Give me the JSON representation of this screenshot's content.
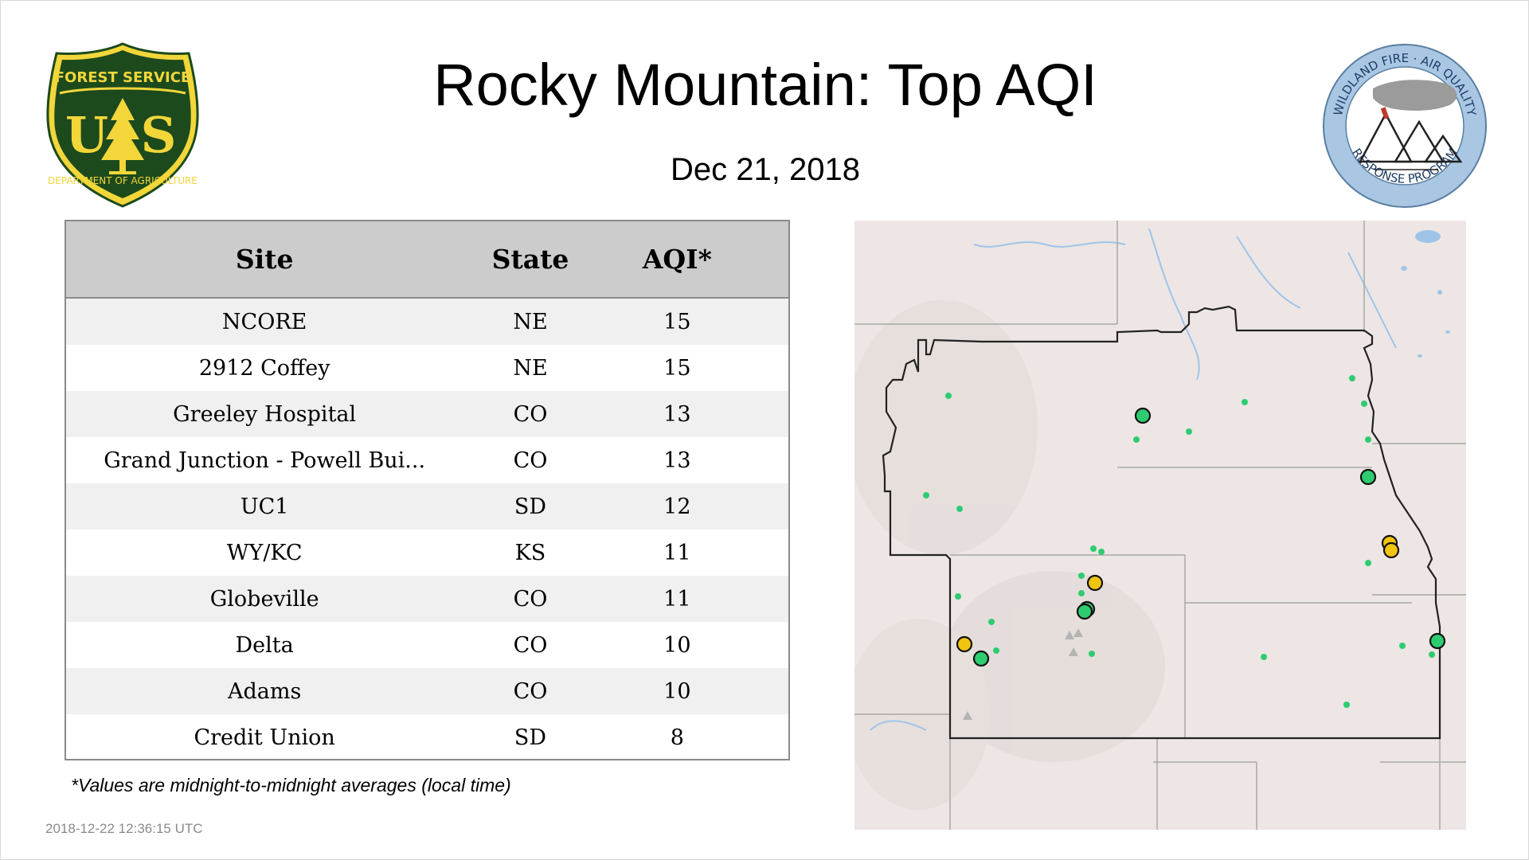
{
  "header": {
    "title": "Rocky Mountain: Top AQI",
    "date": "Dec 21, 2018"
  },
  "logos": {
    "usfs": {
      "top_text": "FOREST SERVICE",
      "center_text": "U S",
      "bottom_text": "DEPARTMENT OF AGRICULTURE",
      "colors": {
        "shield": "#1c4a1c",
        "gold": "#f2d63a"
      }
    },
    "wfaq": {
      "top_text": "WILDLAND FIRE · AIR QUALITY",
      "bottom_text": "RESPONSE PROGRAM",
      "colors": {
        "ring": "#a9c7e3"
      }
    }
  },
  "table": {
    "columns": [
      "Site",
      "State",
      "AQI*"
    ],
    "rows": [
      {
        "site": "NCORE",
        "state": "NE",
        "aqi": "15"
      },
      {
        "site": "2912 Coffey",
        "state": "NE",
        "aqi": "15"
      },
      {
        "site": "Greeley Hospital",
        "state": "CO",
        "aqi": "13"
      },
      {
        "site": "Grand Junction - Powell Bui...",
        "state": "CO",
        "aqi": "13"
      },
      {
        "site": "UC1",
        "state": "SD",
        "aqi": "12"
      },
      {
        "site": "WY/KC",
        "state": "KS",
        "aqi": "11"
      },
      {
        "site": "Globeville",
        "state": "CO",
        "aqi": "11"
      },
      {
        "site": "Delta",
        "state": "CO",
        "aqi": "10"
      },
      {
        "site": "Adams",
        "state": "CO",
        "aqi": "10"
      },
      {
        "site": "Credit Union",
        "state": "SD",
        "aqi": "8"
      }
    ]
  },
  "footnote": "*Values are midnight-to-midnight averages (local time)",
  "timestamp": "2018-12-22 12:36:15 UTC",
  "map": {
    "region": "Rocky Mountain",
    "colors": {
      "background": "#ede6e4",
      "region_outline": "#222222",
      "state_lines": "#a8a8a8",
      "water": "#9fc4e8",
      "aqi_good": "#2ecc71",
      "aqi_moderate": "#f1c40f"
    },
    "marker_types": [
      "small-good",
      "large-good",
      "large-moderate",
      "gray-triangle"
    ]
  }
}
